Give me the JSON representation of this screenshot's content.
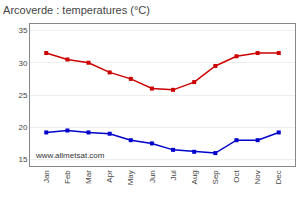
{
  "chart_data": {
    "type": "line",
    "title": "Arcoverde : temperatures (°C)",
    "categories": [
      "Jan",
      "Feb",
      "Mar",
      "Apr",
      "May",
      "Jun",
      "Jul",
      "Aug",
      "Sep",
      "Oct",
      "Nov",
      "Dec"
    ],
    "series": [
      {
        "color": "#cc0000",
        "values": [
          31.5,
          30.5,
          30.0,
          28.5,
          27.5,
          26.0,
          25.8,
          27.0,
          29.5,
          31.0,
          31.5,
          31.5
        ]
      },
      {
        "color": "#0000cc",
        "values": [
          19.2,
          19.5,
          19.2,
          19.0,
          18.0,
          17.5,
          16.5,
          16.2,
          16.0,
          18.0,
          18.0,
          19.2
        ]
      }
    ],
    "ylim": [
      14,
      36
    ],
    "yticks": [
      15,
      20,
      25,
      30,
      35
    ],
    "grid": true,
    "marker": "square",
    "annotations": [
      "www.allmetsat.com"
    ]
  }
}
